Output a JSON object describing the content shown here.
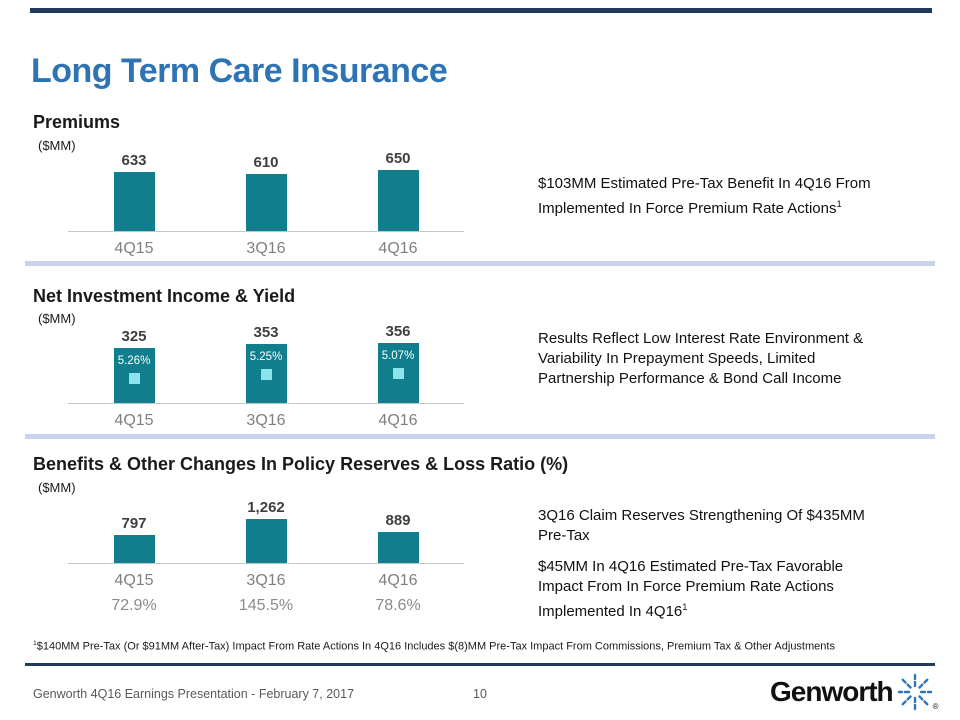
{
  "title": "Long Term Care Insurance",
  "colors": {
    "accent_blue": "#2E74B5",
    "bar_teal": "#107E8C",
    "yield_marker_cyan": "#8BE3EC",
    "divider_light_blue": "#C9D3EC",
    "rule_navy": "#1F3A5C",
    "label_gray": "#808080",
    "value_dark_gray": "#3F3F3F"
  },
  "chart_data": [
    {
      "type": "bar",
      "title": "Premiums",
      "unit": "($MM)",
      "categories": [
        "4Q15",
        "3Q16",
        "4Q16"
      ],
      "values": [
        633,
        610,
        650
      ],
      "value_labels": [
        "633",
        "610",
        "650"
      ],
      "ylim": [
        0,
        650
      ],
      "grid": "off",
      "bar_color": "#107E8C"
    },
    {
      "type": "bar",
      "title": "Net Investment Income & Yield",
      "unit": "($MM)",
      "categories": [
        "4Q15",
        "3Q16",
        "4Q16"
      ],
      "values": [
        325,
        353,
        356
      ],
      "value_labels": [
        "325",
        "353",
        "356"
      ],
      "yields": {
        "name": "Yield (%)",
        "values": [
          "5.26%",
          "5.25%",
          "5.07%"
        ],
        "marker_color": "#8BE3EC"
      },
      "ylim": [
        0,
        356
      ],
      "grid": "off",
      "bar_color": "#107E8C"
    },
    {
      "type": "bar",
      "title": "Benefits & Other Changes In Policy Reserves & Loss Ratio (%)",
      "unit": "($MM)",
      "categories": [
        "4Q15",
        "3Q16",
        "4Q16"
      ],
      "values": [
        797,
        1262,
        889
      ],
      "value_labels": [
        "797",
        "1,262",
        "889"
      ],
      "loss_ratios": [
        "72.9%",
        "145.5%",
        "78.6%"
      ],
      "ylim": [
        0,
        1262
      ],
      "grid": "off",
      "bar_color": "#107E8C"
    }
  ],
  "notes": {
    "premiums": {
      "text": "$103MM Estimated Pre-Tax Benefit In 4Q16 From\nImplemented In Force Premium Rate Actions",
      "sup": "1"
    },
    "investment": {
      "text": "Results Reflect Low Interest Rate Environment &\nVariability In Prepayment Speeds, Limited\nPartnership Performance & Bond Call Income"
    },
    "benefits_1": {
      "text": "3Q16 Claim Reserves Strengthening Of $435MM\nPre-Tax"
    },
    "benefits_2": {
      "text": "$45MM In 4Q16 Estimated Pre-Tax Favorable\nImpact From In Force Premium Rate Actions\nImplemented In 4Q16",
      "sup": "1"
    }
  },
  "footnote": {
    "sup": "1",
    "text": "$140MM Pre-Tax (Or $91MM After-Tax) Impact From Rate Actions In 4Q16 Includes $(8)MM Pre-Tax Impact From Commissions, Premium Tax & Other Adjustments"
  },
  "footer": {
    "left": "Genworth 4Q16 Earnings Presentation - February 7, 2017",
    "page": "10",
    "logo_text": "Genworth",
    "logo_reg": "®"
  }
}
